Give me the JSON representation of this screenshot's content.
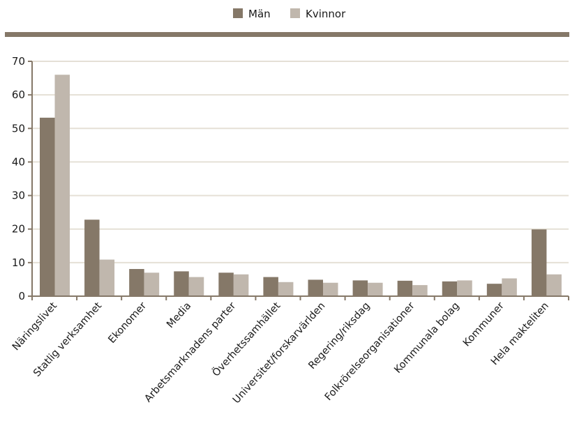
{
  "chart_data": {
    "type": "bar",
    "categories": [
      "Näringslivet",
      "Statlig verksamhet",
      "Ekonomer",
      "Media",
      "Arbetsmarknadens parter",
      "Överhetssamhället",
      "Universitet/forskarvärlden",
      "Regering/riksdag",
      "Folkrörelseorganisationer",
      "Kommunala bolag",
      "Kommuner",
      "Hela makteliten"
    ],
    "series": [
      {
        "name": "Män",
        "color": "#857868",
        "values": [
          53.2,
          22.8,
          8.1,
          7.4,
          7.0,
          5.7,
          4.9,
          4.7,
          4.6,
          4.4,
          3.7,
          19.9
        ]
      },
      {
        "name": "Kvinnor",
        "color": "#c0b7ad",
        "values": [
          66.0,
          10.9,
          7.0,
          5.7,
          6.5,
          4.2,
          4.0,
          4.0,
          3.3,
          4.7,
          5.3,
          6.5
        ]
      }
    ],
    "ylim": [
      0,
      70
    ],
    "yticks": [
      0,
      10,
      20,
      30,
      40,
      50,
      60,
      70
    ],
    "grid": true,
    "legend_position": "top-center",
    "title": "",
    "xlabel": "",
    "ylabel": ""
  },
  "colors": {
    "rule": "#857868",
    "axis": "#857868",
    "grid": "#e5e0d6"
  }
}
